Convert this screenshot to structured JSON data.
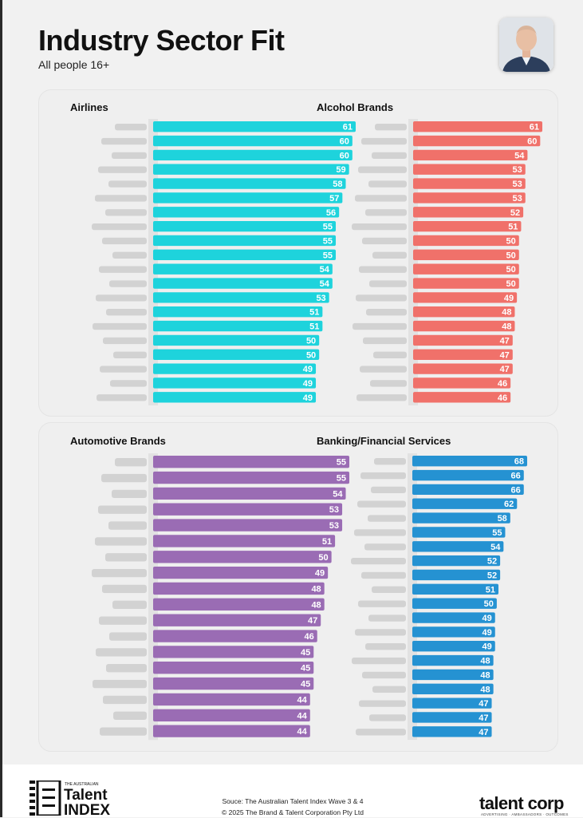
{
  "header": {
    "title": "Industry Sector Fit",
    "subtitle": "All people 16+"
  },
  "footer": {
    "source_line1": "Souce: The Australian Talent Index Wave 3 & 4",
    "source_line2": "© 2025 The Brand & Talent Corporation Pty Ltd",
    "left_logo_small": "THE AUSTRALIAN",
    "left_logo_word1": "Talent",
    "left_logo_word2": "INDEX",
    "right_logo": "talent corp",
    "right_logo_tagline": "ADVERTISING · AMBASSADORS · OUTCOMES"
  },
  "colors": {
    "airlines": "#1ed3dc",
    "alcohol": "#f0716a",
    "automotive": "#9a6cb4",
    "banking": "#2592d2"
  },
  "chart_data": [
    {
      "type": "bar",
      "orientation": "horizontal",
      "title": "Airlines",
      "values": [
        61,
        60,
        60,
        59,
        58,
        57,
        56,
        55,
        55,
        55,
        54,
        54,
        53,
        51,
        51,
        50,
        50,
        49,
        49,
        49
      ],
      "xlim": [
        0,
        61
      ]
    },
    {
      "type": "bar",
      "orientation": "horizontal",
      "title": "Alcohol Brands",
      "values": [
        61,
        60,
        54,
        53,
        53,
        53,
        52,
        51,
        50,
        50,
        50,
        50,
        49,
        48,
        48,
        47,
        47,
        47,
        46,
        46
      ],
      "xlim": [
        0,
        61
      ]
    },
    {
      "type": "bar",
      "orientation": "horizontal",
      "title": "Automotive Brands",
      "values": [
        55,
        55,
        54,
        53,
        53,
        51,
        50,
        49,
        48,
        48,
        47,
        46,
        45,
        45,
        45,
        44,
        44,
        44
      ],
      "xlim": [
        0,
        55
      ]
    },
    {
      "type": "bar",
      "orientation": "horizontal",
      "title": "Banking/Financial Services",
      "values": [
        68,
        66,
        66,
        62,
        58,
        55,
        54,
        52,
        52,
        51,
        50,
        49,
        49,
        49,
        48,
        48,
        48,
        47,
        47,
        47
      ],
      "xlim": [
        0,
        68
      ]
    }
  ]
}
